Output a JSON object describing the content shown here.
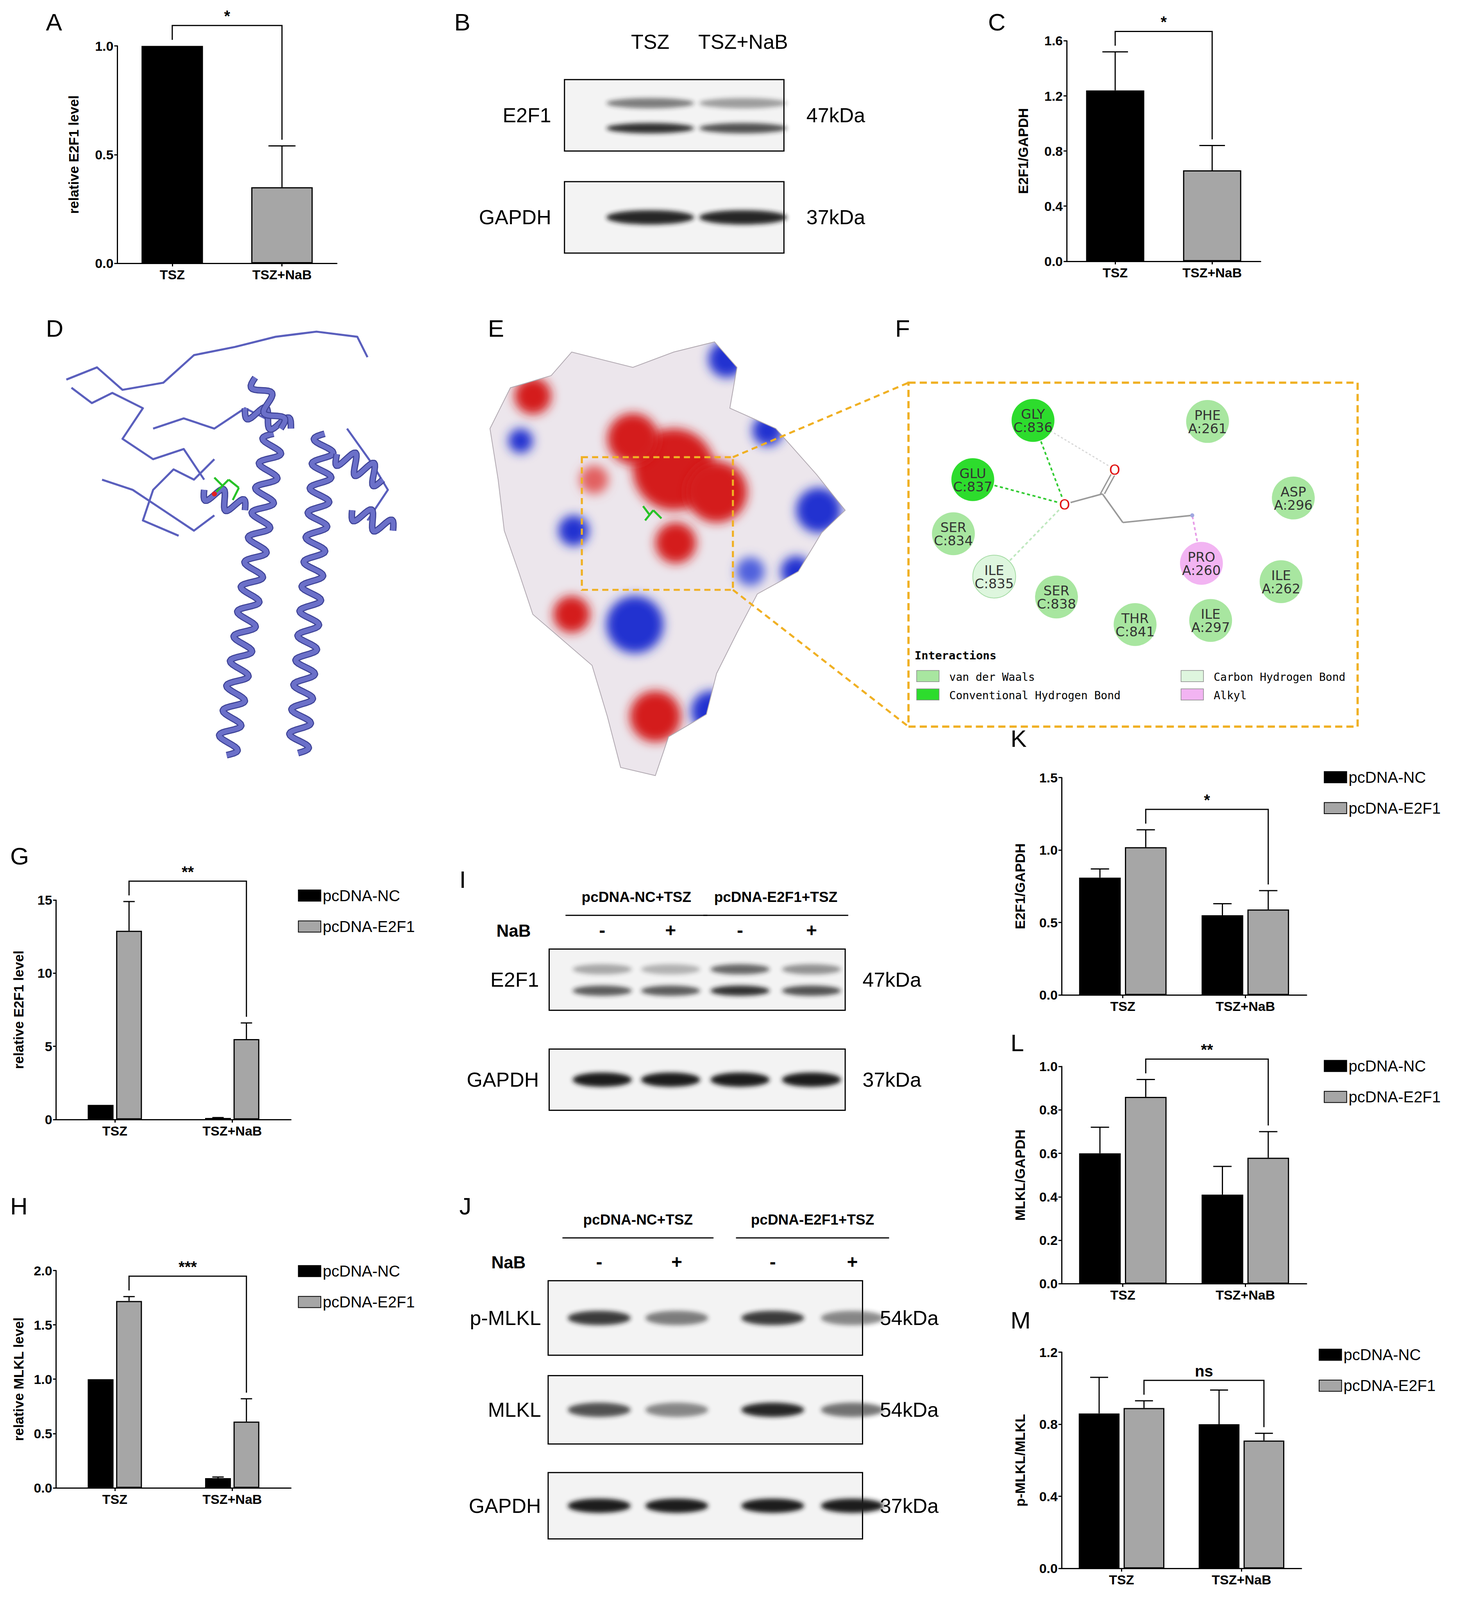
{
  "chart_data": [
    {
      "panel": "A",
      "type": "bar",
      "categories": [
        "TSZ",
        "TSZ+NaB"
      ],
      "values": [
        1.0,
        0.35
      ],
      "errors": [
        0,
        0.19
      ],
      "colors": [
        "#000000",
        "#a6a6a6"
      ],
      "y_label": "relative E2F1 level",
      "ylim": [
        0,
        1
      ],
      "yticks": [
        {
          "value": 0,
          "label": "0.0"
        },
        {
          "value": 0.5,
          "label": "0.5"
        },
        {
          "value": 1,
          "label": "1.0"
        }
      ],
      "grid": false,
      "significance": [
        {
          "between": [
            {
              "category": "TSZ"
            },
            {
              "category": "TSZ+NaB"
            }
          ],
          "label": "*"
        }
      ]
    },
    {
      "panel": "C",
      "type": "bar",
      "categories": [
        "TSZ",
        "TSZ+NaB"
      ],
      "values": [
        1.24,
        0.66
      ],
      "errors": [
        0.28,
        0.18
      ],
      "colors": [
        "#000000",
        "#a6a6a6"
      ],
      "y_label": "E2F1/GAPDH",
      "ylim": [
        0,
        1.6
      ],
      "yticks": [
        {
          "value": 0,
          "label": "0.0"
        },
        {
          "value": 0.4,
          "label": "0.4"
        },
        {
          "value": 0.8,
          "label": "0.8"
        },
        {
          "value": 1.2,
          "label": "1.2"
        },
        {
          "value": 1.6,
          "label": "1.6"
        }
      ],
      "grid": false,
      "significance": [
        {
          "between": [
            {
              "category": "TSZ"
            },
            {
              "category": "TSZ+NaB"
            }
          ],
          "label": "*"
        }
      ]
    },
    {
      "panel": "G",
      "type": "bar",
      "categories": [
        "TSZ",
        "TSZ+NaB"
      ],
      "series": [
        {
          "name": "pcDNA-NC",
          "color": "#000000",
          "values": [
            1.0,
            0.1
          ],
          "errors": [
            0,
            0.03
          ]
        },
        {
          "name": "pcDNA-E2F1",
          "color": "#a6a6a6",
          "values": [
            12.9,
            5.5
          ],
          "errors": [
            2.0,
            1.1
          ]
        }
      ],
      "y_label": "relative E2F1 level",
      "ylim": [
        0,
        15
      ],
      "yticks": [
        0,
        5,
        10,
        15
      ],
      "grid": false,
      "legend": "right",
      "significance": [
        {
          "between": [
            {
              "category": "TSZ",
              "series": "pcDNA-E2F1"
            },
            {
              "category": "TSZ+NaB",
              "series": "pcDNA-E2F1"
            }
          ],
          "label": "**"
        }
      ]
    },
    {
      "panel": "H",
      "type": "bar",
      "categories": [
        "TSZ",
        "TSZ+NaB"
      ],
      "series": [
        {
          "name": "pcDNA-NC",
          "color": "#000000",
          "values": [
            1.0,
            0.09
          ],
          "errors": [
            0,
            0.01
          ]
        },
        {
          "name": "pcDNA-E2F1",
          "color": "#a6a6a6",
          "values": [
            1.72,
            0.61
          ],
          "errors": [
            0.04,
            0.21
          ]
        }
      ],
      "y_label": "relative MLKL level",
      "ylim": [
        0,
        2
      ],
      "yticks": [
        {
          "value": 0,
          "label": "0.0"
        },
        {
          "value": 0.5,
          "label": "0.5"
        },
        {
          "value": 1,
          "label": "1.0"
        },
        {
          "value": 1.5,
          "label": "1.5"
        },
        {
          "value": 2,
          "label": "2.0"
        }
      ],
      "grid": false,
      "legend": "right",
      "significance": [
        {
          "between": [
            {
              "category": "TSZ",
              "series": "pcDNA-E2F1"
            },
            {
              "category": "TSZ+NaB",
              "series": "pcDNA-E2F1"
            }
          ],
          "label": "***"
        }
      ]
    },
    {
      "panel": "K",
      "type": "bar",
      "categories": [
        "TSZ",
        "TSZ+NaB"
      ],
      "series": [
        {
          "name": "pcDNA-NC",
          "color": "#000000",
          "values": [
            0.81,
            0.55
          ],
          "errors": [
            0.06,
            0.08
          ]
        },
        {
          "name": "pcDNA-E2F1",
          "color": "#a6a6a6",
          "values": [
            1.02,
            0.59
          ],
          "errors": [
            0.12,
            0.13
          ]
        }
      ],
      "y_label": "E2F1/GAPDH",
      "ylim": [
        0,
        1.5
      ],
      "yticks": [
        {
          "value": 0,
          "label": "0.0"
        },
        {
          "value": 0.5,
          "label": "0.5"
        },
        {
          "value": 1,
          "label": "1.0"
        },
        {
          "value": 1.5,
          "label": "1.5"
        }
      ],
      "grid": false,
      "legend": "right",
      "significance": [
        {
          "between": [
            {
              "category": "TSZ",
              "series": "pcDNA-E2F1"
            },
            {
              "category": "TSZ+NaB",
              "series": "pcDNA-E2F1"
            }
          ],
          "label": "*"
        }
      ]
    },
    {
      "panel": "L",
      "type": "bar",
      "categories": [
        "TSZ",
        "TSZ+NaB"
      ],
      "series": [
        {
          "name": "pcDNA-NC",
          "color": "#000000",
          "values": [
            0.6,
            0.41
          ],
          "errors": [
            0.12,
            0.13
          ]
        },
        {
          "name": "pcDNA-E2F1",
          "color": "#a6a6a6",
          "values": [
            0.86,
            0.58
          ],
          "errors": [
            0.08,
            0.12
          ]
        }
      ],
      "y_label": "MLKL/GAPDH",
      "ylim": [
        0,
        1
      ],
      "yticks": [
        {
          "value": 0,
          "label": "0.0"
        },
        {
          "value": 0.2,
          "label": "0.2"
        },
        {
          "value": 0.4,
          "label": "0.4"
        },
        {
          "value": 0.6,
          "label": "0.6"
        },
        {
          "value": 0.8,
          "label": "0.8"
        },
        {
          "value": 1,
          "label": "1.0"
        }
      ],
      "grid": false,
      "legend": "right",
      "significance": [
        {
          "between": [
            {
              "category": "TSZ",
              "series": "pcDNA-E2F1"
            },
            {
              "category": "TSZ+NaB",
              "series": "pcDNA-E2F1"
            }
          ],
          "label": "**"
        }
      ]
    },
    {
      "panel": "M",
      "type": "bar",
      "categories": [
        "TSZ",
        "TSZ+NaB"
      ],
      "series": [
        {
          "name": "pcDNA-NC",
          "color": "#000000",
          "values": [
            0.86,
            0.8
          ],
          "errors": [
            0.2,
            0.19
          ]
        },
        {
          "name": "pcDNA-E2F1",
          "color": "#a6a6a6",
          "values": [
            0.89,
            0.71
          ],
          "errors": [
            0.04,
            0.04
          ]
        }
      ],
      "y_label": "p-MLKL/MLKL",
      "ylim": [
        0,
        1.2
      ],
      "yticks": [
        {
          "value": 0,
          "label": "0.0"
        },
        {
          "value": 0.4,
          "label": "0.4"
        },
        {
          "value": 0.8,
          "label": "0.8"
        },
        {
          "value": 1.2,
          "label": "1.2"
        }
      ],
      "grid": false,
      "legend": "right",
      "significance": [
        {
          "between": [
            {
              "category": "TSZ",
              "series": "pcDNA-E2F1"
            },
            {
              "category": "TSZ+NaB",
              "series": "pcDNA-E2F1"
            }
          ],
          "label": "ns"
        }
      ]
    }
  ],
  "blots": [
    {
      "panel": "B",
      "lanes": [
        "TSZ",
        "TSZ+NaB"
      ],
      "rows": [
        {
          "label": "E2F1",
          "size": "47kDa"
        },
        {
          "label": "GAPDH",
          "size": "37kDa"
        }
      ]
    },
    {
      "panel": "I",
      "groups": [
        "pcDNA-NC+TSZ",
        "pcDNA-E2F1+TSZ"
      ],
      "treatment": "NaB",
      "lanes": [
        "-",
        "+",
        "-",
        "+"
      ],
      "rows": [
        {
          "label": "E2F1",
          "size": "47kDa"
        },
        {
          "label": "GAPDH",
          "size": "37kDa"
        }
      ]
    },
    {
      "panel": "J",
      "groups": [
        "pcDNA-NC+TSZ",
        "pcDNA-E2F1+TSZ"
      ],
      "treatment": "NaB",
      "lanes": [
        "-",
        "+",
        "-",
        "+"
      ],
      "rows": [
        {
          "label": "p-MLKL",
          "size": "54kDa"
        },
        {
          "label": "MLKL",
          "size": "54kDa"
        },
        {
          "label": "GAPDH",
          "size": "37kDa"
        }
      ]
    }
  ],
  "docking": {
    "panels": [
      "D",
      "E",
      "F"
    ],
    "residues": [
      {
        "name": "GLY",
        "id": "C:836",
        "interaction": "Conventional Hydrogen Bond"
      },
      {
        "name": "PHE",
        "id": "A:261",
        "interaction": "van der Waals"
      },
      {
        "name": "GLU",
        "id": "C:837",
        "interaction": "Conventional Hydrogen Bond"
      },
      {
        "name": "ASP",
        "id": "A:296",
        "interaction": "van der Waals"
      },
      {
        "name": "SER",
        "id": "C:834",
        "interaction": "van der Waals"
      },
      {
        "name": "PRO",
        "id": "A:260",
        "interaction": "Alkyl"
      },
      {
        "name": "ILE",
        "id": "C:835",
        "interaction": "Carbon Hydrogen Bond"
      },
      {
        "name": "ILE",
        "id": "A:262",
        "interaction": "van der Waals"
      },
      {
        "name": "SER",
        "id": "C:838",
        "interaction": "van der Waals"
      },
      {
        "name": "THR",
        "id": "C:841",
        "interaction": "van der Waals"
      },
      {
        "name": "ILE",
        "id": "A:297",
        "interaction": "van der Waals"
      }
    ],
    "ligand_atoms": [
      "O",
      "O"
    ],
    "legend_title": "Interactions",
    "interaction_types": [
      {
        "name": "van der Waals",
        "color": "#a8e6a0"
      },
      {
        "name": "Conventional Hydrogen Bond",
        "color": "#2ddc2d"
      },
      {
        "name": "Carbon Hydrogen Bond",
        "color": "#def6de"
      },
      {
        "name": "Alkyl",
        "color": "#f2b4f2"
      }
    ]
  }
}
